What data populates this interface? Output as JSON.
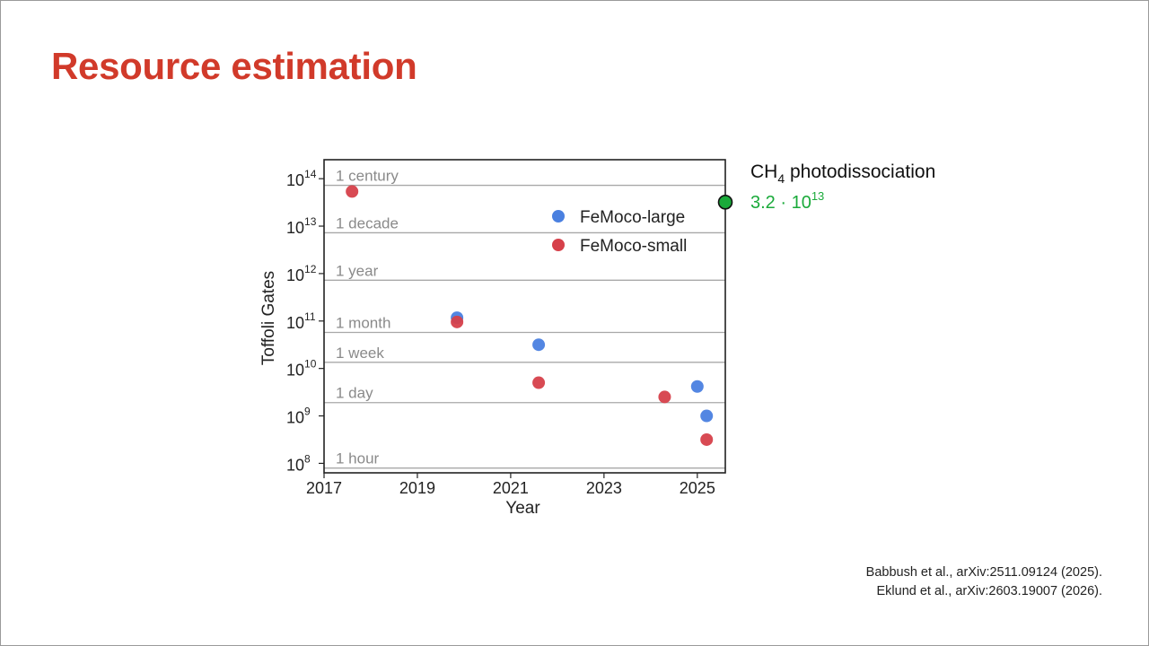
{
  "slide": {
    "title": "Resource estimation"
  },
  "references": [
    "Babbush et al., arXiv:2511.09124 (2025).",
    "Eklund et al., arXiv:2603.19007 (2026)."
  ],
  "annotation": {
    "label_main": "CH",
    "label_sub": "4",
    "label_rest": " photodissociation",
    "value_mantissa": "3.2 · 10",
    "value_exp": "13",
    "value": 32000000000000.0,
    "color": "#1aaa3a"
  },
  "chart_data": {
    "type": "scatter",
    "xlabel": "Year",
    "ylabel": "Toffoli Gates",
    "xlim": [
      2017,
      2025.6
    ],
    "ylim_log10": [
      7.8,
      14.4
    ],
    "yscale": "log",
    "xticks": [
      2017,
      2019,
      2021,
      2023,
      2025
    ],
    "yticks": [
      {
        "base": "10",
        "exp": "8",
        "log10": 8
      },
      {
        "base": "10",
        "exp": "9",
        "log10": 9
      },
      {
        "base": "10",
        "exp": "10",
        "log10": 10
      },
      {
        "base": "10",
        "exp": "11",
        "log10": 11
      },
      {
        "base": "10",
        "exp": "12",
        "log10": 12
      },
      {
        "base": "10",
        "exp": "13",
        "log10": 13
      },
      {
        "base": "10",
        "exp": "14",
        "log10": 14
      }
    ],
    "time_bands": [
      {
        "label": "1 hour",
        "log10": 7.9
      },
      {
        "label": "1 day",
        "log10": 9.28
      },
      {
        "label": "1 week",
        "log10": 10.13
      },
      {
        "label": "1 month",
        "log10": 10.76
      },
      {
        "label": "1 year",
        "log10": 11.86
      },
      {
        "label": "1 decade",
        "log10": 12.86
      },
      {
        "label": "1 century",
        "log10": 13.86
      }
    ],
    "legend_position": "top-right",
    "series": [
      {
        "name": "FeMoco-large",
        "color": "#4a80e0",
        "points": [
          {
            "x": 2019.85,
            "log10y": 11.07
          },
          {
            "x": 2021.6,
            "log10y": 10.5
          },
          {
            "x": 2025.0,
            "log10y": 9.62
          },
          {
            "x": 2025.2,
            "log10y": 9.0
          }
        ]
      },
      {
        "name": "FeMoco-small",
        "color": "#d6404a",
        "points": [
          {
            "x": 2017.6,
            "log10y": 13.73
          },
          {
            "x": 2019.85,
            "log10y": 10.98
          },
          {
            "x": 2021.6,
            "log10y": 9.7
          },
          {
            "x": 2024.3,
            "log10y": 9.4
          },
          {
            "x": 2025.2,
            "log10y": 8.5
          }
        ]
      }
    ]
  }
}
